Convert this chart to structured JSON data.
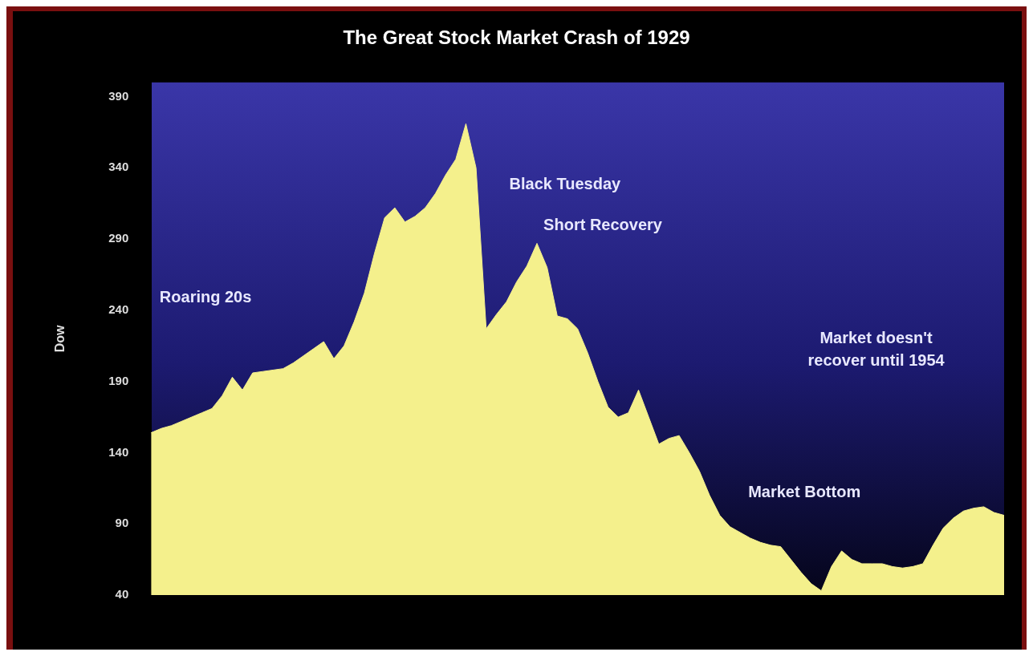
{
  "chart_data": {
    "type": "area",
    "title": "The Great Stock Market Crash of 1929",
    "ylabel": "Dow",
    "categories": [
      null,
      null,
      null,
      null,
      null,
      null,
      null,
      null,
      null,
      null,
      null,
      null,
      null,
      null,
      null,
      null,
      null,
      null,
      null,
      null,
      null,
      null,
      null,
      null,
      null,
      null,
      null,
      null,
      null,
      null,
      null,
      null,
      null,
      null,
      null,
      null,
      null,
      null,
      null,
      null,
      null,
      null,
      null,
      null,
      null,
      null,
      null,
      null,
      null,
      null,
      null,
      null,
      null,
      null,
      null,
      null,
      null,
      null,
      null,
      null,
      null,
      null,
      null,
      null,
      null,
      null,
      null,
      null,
      null,
      null,
      null,
      null,
      null,
      null,
      null,
      null,
      null,
      null,
      null,
      null,
      null,
      null,
      null,
      null,
      null
    ],
    "series": [
      {
        "color": "#f4f08c",
        "values": [
          154,
          157,
          159,
          162,
          165,
          168,
          171,
          180,
          193,
          184,
          196,
          197,
          198,
          199,
          203,
          208,
          213,
          218,
          206,
          215,
          232,
          252,
          280,
          305,
          312,
          302,
          306,
          312,
          322,
          335,
          346,
          371,
          340,
          227,
          237,
          246,
          260,
          271,
          287,
          270,
          236,
          234,
          227,
          210,
          190,
          172,
          165,
          168,
          184,
          165,
          146,
          150,
          152,
          140,
          127,
          110,
          96,
          88,
          84,
          80,
          77,
          75,
          74,
          65,
          56,
          48,
          43,
          60,
          71,
          65,
          62,
          62,
          62,
          60,
          59,
          60,
          62,
          75,
          87,
          94,
          99,
          101,
          102,
          98,
          96
        ]
      }
    ],
    "ylim": [
      40,
      400
    ],
    "yticks": [
      40,
      90,
      140,
      190,
      240,
      290,
      340,
      390
    ],
    "grid": false,
    "legend": false,
    "annotations": [
      "Roaring 20s",
      "Black Tuesday",
      "Short Recovery",
      "Market doesn't\nrecover until 1954",
      "Market Bottom"
    ]
  }
}
